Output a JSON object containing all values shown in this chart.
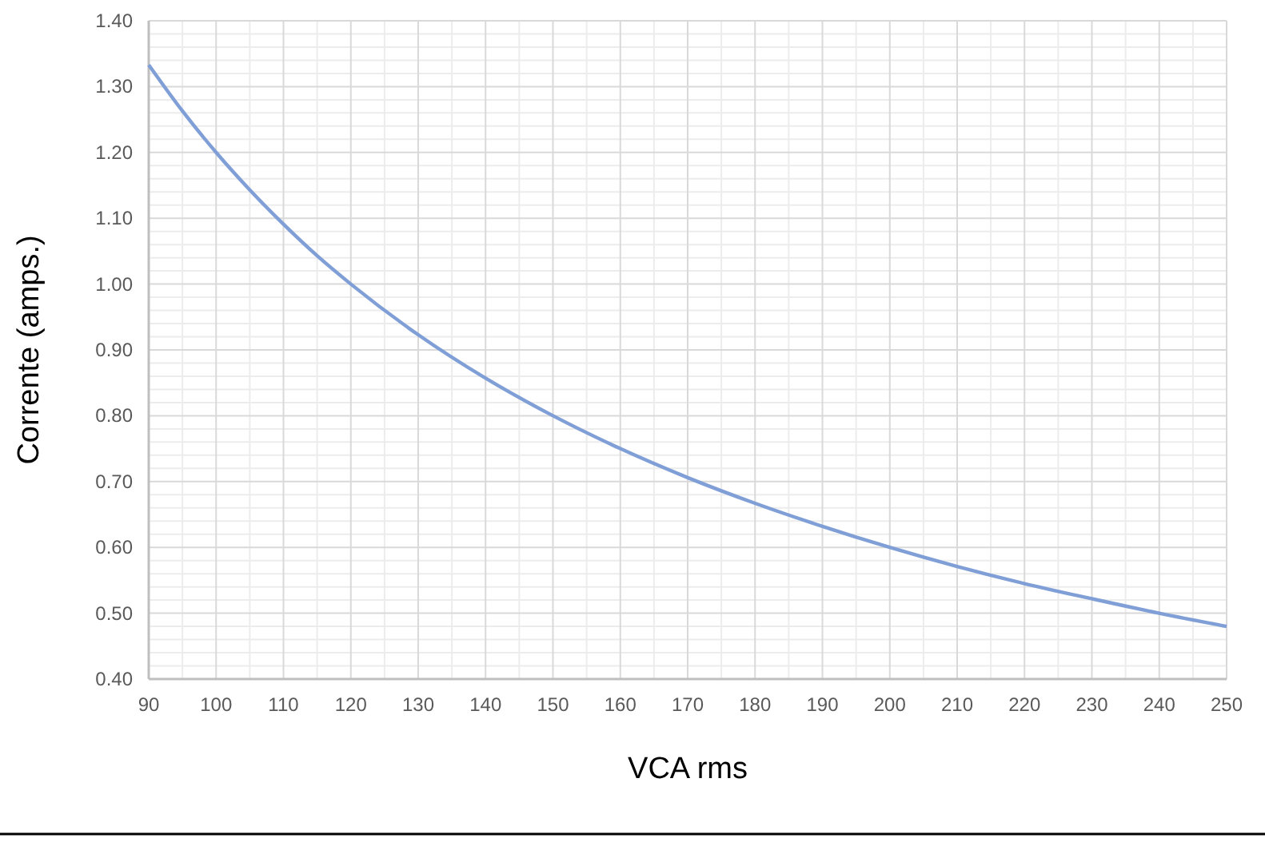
{
  "chart_data": {
    "type": "line",
    "xlabel": "VCA rms",
    "ylabel": "Corrente (amps.)",
    "x": [
      90,
      95,
      100,
      105,
      110,
      115,
      120,
      130,
      140,
      150,
      160,
      170,
      180,
      190,
      200,
      210,
      220,
      230,
      240,
      250
    ],
    "series": [
      {
        "color": "#7f9fd6",
        "values": [
          1.333,
          1.263,
          1.2,
          1.143,
          1.091,
          1.043,
          1.0,
          0.923,
          0.857,
          0.8,
          0.75,
          0.706,
          0.667,
          0.632,
          0.6,
          0.571,
          0.545,
          0.522,
          0.5,
          0.48
        ]
      }
    ],
    "xlim": [
      90,
      250
    ],
    "xticks": [
      90,
      100,
      110,
      120,
      130,
      140,
      150,
      160,
      170,
      180,
      190,
      200,
      210,
      220,
      230,
      240,
      250
    ],
    "ylim": [
      0.4,
      1.4
    ],
    "yticks": [
      {
        "value": 0.4,
        "label": "0.40"
      },
      {
        "value": 0.5,
        "label": "0.50"
      },
      {
        "value": 0.6,
        "label": "0.60"
      },
      {
        "value": 0.7,
        "label": "0.70"
      },
      {
        "value": 0.8,
        "label": "0.80"
      },
      {
        "value": 0.9,
        "label": "0.90"
      },
      {
        "value": 1.0,
        "label": "1.00"
      },
      {
        "value": 1.1,
        "label": "1.10"
      },
      {
        "value": 1.2,
        "label": "1.20"
      },
      {
        "value": 1.3,
        "label": "1.30"
      },
      {
        "value": 1.4,
        "label": "1.40"
      }
    ],
    "grid": true,
    "marker": "none",
    "line_style": "solid"
  }
}
